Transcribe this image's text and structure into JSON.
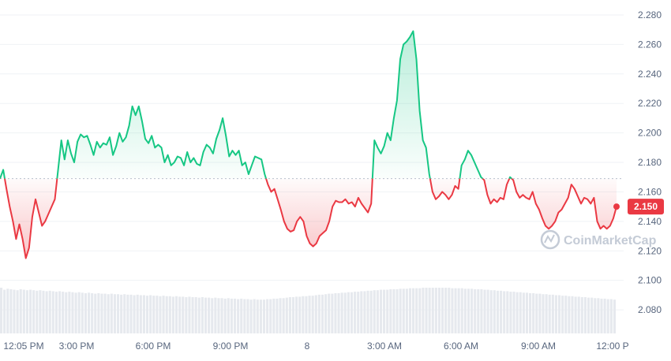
{
  "chart_data": {
    "type": "area",
    "title": "",
    "xlabel": "",
    "ylabel": "",
    "ylim": [
      2.064,
      2.288
    ],
    "y_ticks": [
      "2.280",
      "2.260",
      "2.240",
      "2.220",
      "2.200",
      "2.180",
      "2.160",
      "2.140",
      "2.120",
      "2.100",
      "2.080"
    ],
    "x_ticks": [
      "12:05 PM",
      "3:00 PM",
      "6:00 PM",
      "9:00 PM",
      "8",
      "3:00 AM",
      "6:00 AM",
      "9:00 AM",
      "12:00 P"
    ],
    "baseline_value": 2.169,
    "current_price_label": "2.150",
    "current_price": 2.15,
    "colors": {
      "up": "#16c784",
      "down": "#ea3943",
      "grid": "#eff2f5",
      "volume": "#e6e9ee"
    },
    "watermark": "CoinMarketCap",
    "grid": true,
    "series": [
      {
        "values": [
          2.169,
          2.175,
          2.162,
          2.15,
          2.14,
          2.128,
          2.138,
          2.128,
          2.115,
          2.122,
          2.143,
          2.155,
          2.146,
          2.137,
          2.14,
          2.145,
          2.15,
          2.155,
          2.175,
          2.195,
          2.182,
          2.195,
          2.186,
          2.18,
          2.194,
          2.199,
          2.197,
          2.198,
          2.192,
          2.185,
          2.194,
          2.19,
          2.193,
          2.192,
          2.197,
          2.185,
          2.191,
          2.2,
          2.194,
          2.197,
          2.205,
          2.218,
          2.212,
          2.218,
          2.208,
          2.196,
          2.193,
          2.198,
          2.19,
          2.192,
          2.19,
          2.18,
          2.185,
          2.178,
          2.18,
          2.184,
          2.183,
          2.178,
          2.187,
          2.18,
          2.183,
          2.179,
          2.178,
          2.187,
          2.192,
          2.19,
          2.186,
          2.196,
          2.202,
          2.21,
          2.198,
          2.184,
          2.188,
          2.185,
          2.188,
          2.178,
          2.18,
          2.172,
          2.178,
          2.184,
          2.183,
          2.182,
          2.172,
          2.165,
          2.16,
          2.162,
          2.155,
          2.148,
          2.14,
          2.135,
          2.133,
          2.134,
          2.14,
          2.143,
          2.14,
          2.13,
          2.125,
          2.123,
          2.125,
          2.13,
          2.132,
          2.134,
          2.14,
          2.15,
          2.154,
          2.153,
          2.153,
          2.155,
          2.152,
          2.153,
          2.15,
          2.156,
          2.152,
          2.149,
          2.146,
          2.152,
          2.195,
          2.19,
          2.186,
          2.191,
          2.2,
          2.195,
          2.21,
          2.222,
          2.25,
          2.26,
          2.262,
          2.265,
          2.269,
          2.25,
          2.215,
          2.195,
          2.19,
          2.172,
          2.16,
          2.155,
          2.157,
          2.16,
          2.158,
          2.155,
          2.158,
          2.164,
          2.162,
          2.178,
          2.182,
          2.188,
          2.185,
          2.18,
          2.175,
          2.17,
          2.168,
          2.158,
          2.152,
          2.155,
          2.153,
          2.156,
          2.155,
          2.165,
          2.17,
          2.168,
          2.16,
          2.156,
          2.158,
          2.156,
          2.155,
          2.16,
          2.152,
          2.148,
          2.142,
          2.137,
          2.135,
          2.137,
          2.14,
          2.146,
          2.148,
          2.152,
          2.156,
          2.165,
          2.162,
          2.157,
          2.152,
          2.156,
          2.155,
          2.152,
          2.156,
          2.14,
          2.135,
          2.137,
          2.135,
          2.137,
          2.142,
          2.15
        ]
      }
    ],
    "volume_values": [
      0.92,
      0.88,
      0.9,
      0.89,
      0.88,
      0.87,
      0.89,
      0.88,
      0.87,
      0.88,
      0.87,
      0.86,
      0.87,
      0.86,
      0.85,
      0.86,
      0.85,
      0.84,
      0.85,
      0.84,
      0.83,
      0.84,
      0.83,
      0.82,
      0.83,
      0.82,
      0.81,
      0.82,
      0.81,
      0.8,
      0.81,
      0.8,
      0.8,
      0.79,
      0.8,
      0.79,
      0.79,
      0.78,
      0.79,
      0.78,
      0.78,
      0.77,
      0.78,
      0.77,
      0.77,
      0.76,
      0.77,
      0.76,
      0.76,
      0.75,
      0.76,
      0.75,
      0.75,
      0.74,
      0.75,
      0.74,
      0.74,
      0.73,
      0.74,
      0.73,
      0.73,
      0.72,
      0.73,
      0.72,
      0.72,
      0.71,
      0.72,
      0.71,
      0.71,
      0.7,
      0.71,
      0.7,
      0.7,
      0.69,
      0.7,
      0.69,
      0.69,
      0.68,
      0.69,
      0.68,
      0.68,
      0.68,
      0.69,
      0.69,
      0.7,
      0.7,
      0.71,
      0.71,
      0.72,
      0.73,
      0.73,
      0.74,
      0.74,
      0.75,
      0.75,
      0.76,
      0.76,
      0.77,
      0.78,
      0.78,
      0.79,
      0.8,
      0.8,
      0.81,
      0.81,
      0.82,
      0.82,
      0.83,
      0.83,
      0.84,
      0.84,
      0.85,
      0.85,
      0.86,
      0.86,
      0.87,
      0.87,
      0.88,
      0.88,
      0.88,
      0.89,
      0.89,
      0.89,
      0.9,
      0.9,
      0.9,
      0.91,
      0.91,
      0.91,
      0.91,
      0.92,
      0.92,
      0.92,
      0.92,
      0.92,
      0.92,
      0.92,
      0.92,
      0.92,
      0.91,
      0.91,
      0.91,
      0.91,
      0.9,
      0.9,
      0.9,
      0.89,
      0.89,
      0.89,
      0.88,
      0.88,
      0.87,
      0.87,
      0.86,
      0.86,
      0.85,
      0.85,
      0.84,
      0.84,
      0.83,
      0.83,
      0.82,
      0.82,
      0.81,
      0.81,
      0.8,
      0.8,
      0.79,
      0.79,
      0.78,
      0.78,
      0.77,
      0.77,
      0.76,
      0.76,
      0.75,
      0.75,
      0.74,
      0.74,
      0.73,
      0.73,
      0.72,
      0.72,
      0.71,
      0.71,
      0.7,
      0.7,
      0.69,
      0.69,
      0.68
    ]
  }
}
